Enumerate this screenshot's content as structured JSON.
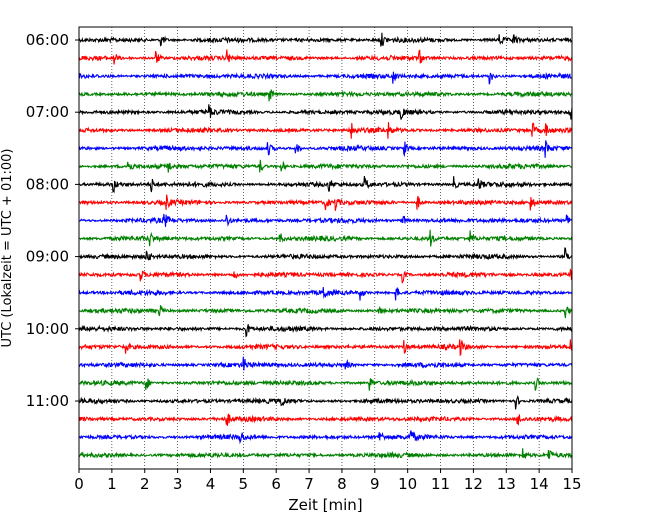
{
  "chart_data": {
    "type": "line",
    "title": "",
    "xlabel": "Zeit  [min]",
    "ylabel": "UTC (Lokalzeit = UTC + 01:00)",
    "xlim": [
      0,
      15
    ],
    "x_ticks": [
      0,
      1,
      2,
      3,
      4,
      5,
      6,
      7,
      8,
      9,
      10,
      11,
      12,
      13,
      14,
      15
    ],
    "x_tick_labels": [
      "0",
      "1",
      "2",
      "3",
      "4",
      "5",
      "6",
      "7",
      "8",
      "9",
      "10",
      "11",
      "12",
      "13",
      "14",
      "15"
    ],
    "y_tick_labels": [
      "06:00",
      "07:00",
      "08:00",
      "09:00",
      "10:00",
      "11:00"
    ],
    "grid": "vertical dotted at each minute",
    "trace_minutes": 15,
    "color_cycle": [
      "#000000",
      "#ff0000",
      "#0000ff",
      "#008000"
    ],
    "traces": [
      {
        "start": "06:00",
        "events_min": [
          2.5,
          9.2,
          12.8,
          13.2
        ]
      },
      {
        "start": "06:15",
        "events_min": [
          1.05,
          2.35,
          4.5,
          10.35
        ]
      },
      {
        "start": "06:30",
        "events_min": [
          9.55,
          12.5
        ]
      },
      {
        "start": "06:45",
        "events_min": [
          5.8
        ]
      },
      {
        "start": "07:00",
        "events_min": [
          3.95,
          9.8,
          14.95
        ]
      },
      {
        "start": "07:15",
        "events_min": [
          8.3,
          9.4,
          13.8,
          14.2
        ]
      },
      {
        "start": "07:30",
        "events_min": [
          5.75,
          6.6,
          9.9,
          14.2
        ]
      },
      {
        "start": "07:45",
        "events_min": [
          1.5,
          2.7,
          5.5,
          6.15
        ]
      },
      {
        "start": "08:00",
        "events_min": [
          1.05,
          2.2,
          7.6,
          8.7,
          11.4,
          12.15
        ]
      },
      {
        "start": "08:15",
        "events_min": [
          2.65,
          7.5,
          7.8,
          10.3,
          13.75
        ]
      },
      {
        "start": "08:30",
        "events_min": [
          2.6,
          4.5,
          9.85,
          14.85
        ]
      },
      {
        "start": "08:45",
        "events_min": [
          2.15,
          6.1,
          10.7,
          11.9
        ]
      },
      {
        "start": "09:00",
        "events_min": [
          2.05,
          14.8
        ]
      },
      {
        "start": "09:15",
        "events_min": [
          1.85,
          4.7,
          9.85,
          14.95
        ]
      },
      {
        "start": "09:30",
        "events_min": [
          7.45,
          8.55,
          9.65
        ]
      },
      {
        "start": "09:45",
        "events_min": [
          2.45,
          9.1,
          14.8
        ]
      },
      {
        "start": "10:00",
        "events_min": [
          5.1
        ]
      },
      {
        "start": "10:15",
        "events_min": [
          1.4,
          9.9,
          11.6,
          14.95
        ]
      },
      {
        "start": "10:30",
        "events_min": [
          5.0,
          8.1
        ]
      },
      {
        "start": "10:45",
        "events_min": [
          2.05,
          8.85,
          13.9
        ]
      },
      {
        "start": "11:00",
        "events_min": [
          6.15,
          13.3
        ]
      },
      {
        "start": "11:15",
        "events_min": [
          4.5,
          13.35
        ]
      },
      {
        "start": "11:30",
        "events_min": [
          4.9,
          9.15,
          10.1
        ]
      },
      {
        "start": "11:45",
        "events_min": [
          13.5,
          14.3
        ]
      }
    ]
  }
}
